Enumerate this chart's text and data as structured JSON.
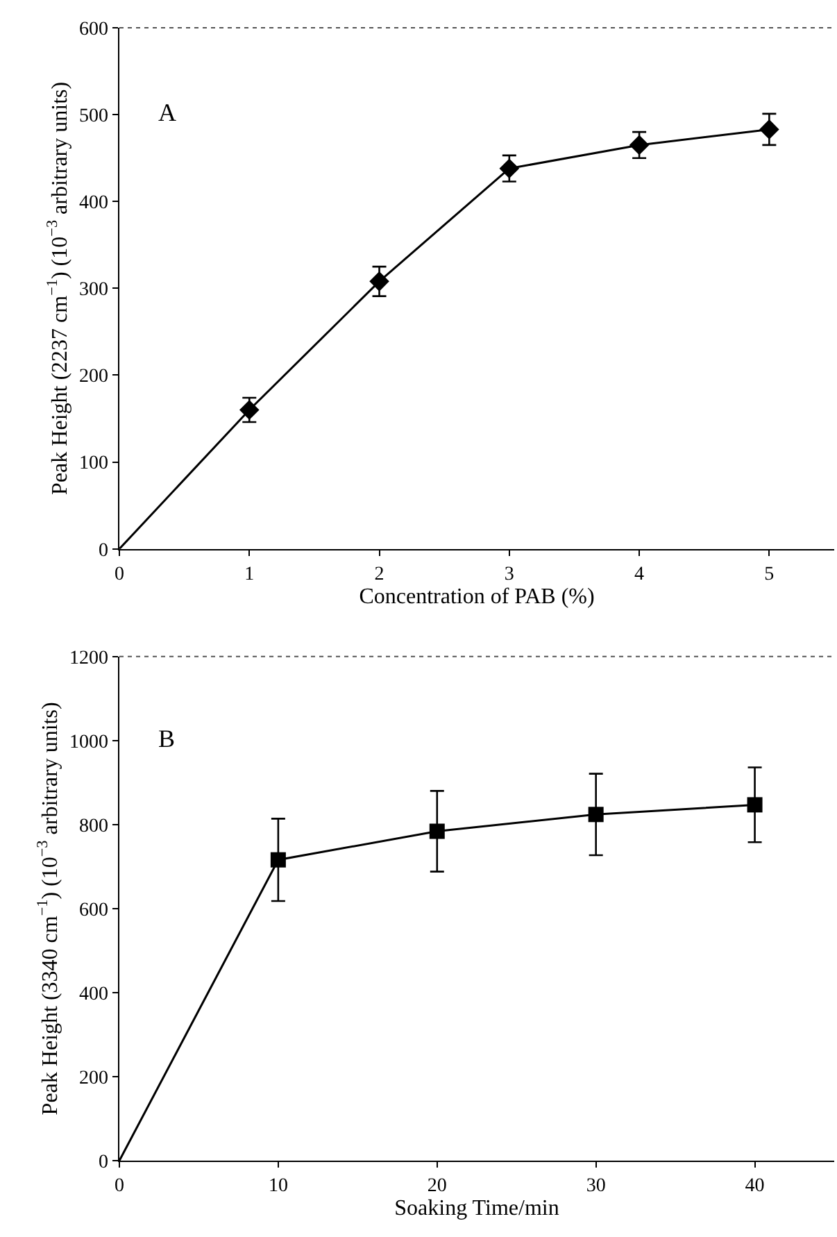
{
  "chart_data": [
    {
      "type": "line",
      "xlabel": "Concentration of PAB (%)",
      "ylabel": "Peak Height (2237 cm$^{−1}$) (10$^{−3}$ arbitrary units)",
      "annotations": [
        "A"
      ],
      "xlim": [
        0,
        5.5
      ],
      "xticks": [
        0,
        1,
        2,
        3,
        4,
        5
      ],
      "ylim": [
        0,
        600
      ],
      "yticks": [
        0,
        100,
        200,
        300,
        400,
        500,
        600
      ],
      "series": [
        {
          "color": "#000000",
          "marker": "none",
          "line_style": "solid",
          "x": [
            0,
            1,
            2,
            3,
            4,
            5
          ],
          "values": [
            0,
            160,
            308,
            438,
            465,
            483
          ]
        },
        {
          "type": "scatter",
          "color": "#000000",
          "marker": "diamond",
          "x": [
            1,
            2,
            3,
            4,
            5
          ],
          "values": [
            160,
            308,
            438,
            465,
            483
          ],
          "errors": [
            14,
            17,
            15,
            15,
            18
          ]
        }
      ]
    },
    {
      "type": "line",
      "xlabel": "Soaking Time/min",
      "ylabel": "Peak Height (3340 cm$^{−1}$) (10$^{−3}$ arbitrary units)",
      "annotations": [
        "B"
      ],
      "xlim": [
        0,
        45
      ],
      "xticks": [
        0,
        10,
        20,
        30,
        40
      ],
      "ylim": [
        0,
        1200
      ],
      "yticks": [
        0,
        200,
        400,
        600,
        800,
        1000,
        1200
      ],
      "series": [
        {
          "color": "#000000",
          "marker": "none",
          "line_style": "solid",
          "x": [
            0,
            10,
            20,
            30,
            40
          ],
          "values": [
            0,
            716,
            784,
            824,
            847
          ]
        },
        {
          "type": "scatter",
          "color": "#000000",
          "marker": "square",
          "x": [
            10,
            20,
            30,
            40
          ],
          "values": [
            716,
            784,
            824,
            847
          ],
          "errors": [
            98,
            96,
            97,
            89
          ]
        }
      ]
    }
  ]
}
